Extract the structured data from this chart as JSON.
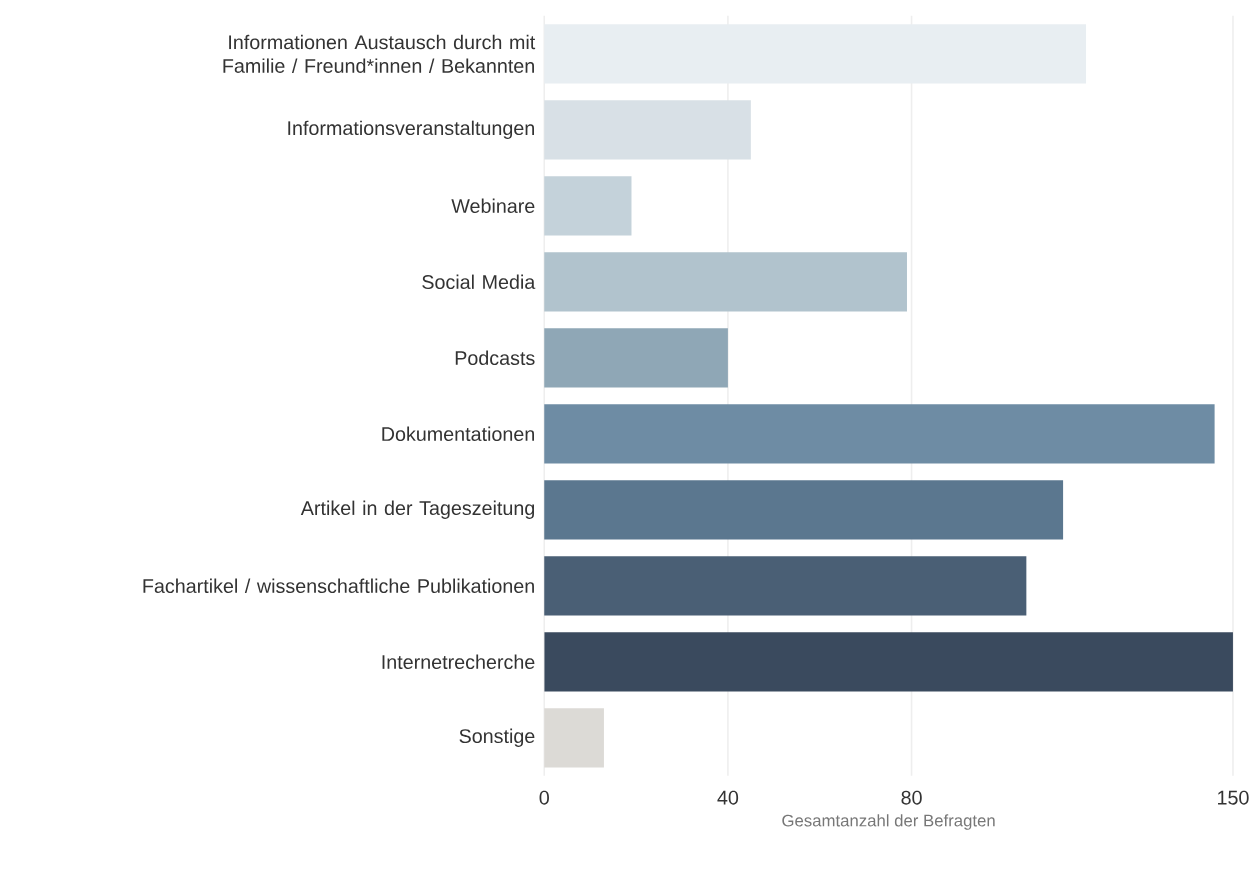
{
  "chart_data": {
    "type": "bar",
    "orientation": "horizontal",
    "categories": [
      "Informationen Austausch durch mit Familie / Freund*innen / Bekannten",
      "Informationsveranstaltungen",
      "Webinare",
      "Social Media",
      "Podcasts",
      "Dokumentationen",
      "Artikel in der Tageszeitung",
      "Fachartikel / wissenschaftliche Publikationen",
      "Internetrecherche",
      "Sonstige"
    ],
    "values": [
      118,
      45,
      19,
      79,
      40,
      146,
      113,
      105,
      150,
      13
    ],
    "colors": [
      "#e8eef2",
      "#d8e0e6",
      "#c4d2da",
      "#b1c3cd",
      "#8fa7b6",
      "#6e8ca4",
      "#5b778f",
      "#4a5f75",
      "#3a4a5e",
      "#dcdad6"
    ],
    "xlabel": "Gesamtanzahl der Befragten",
    "xlim": [
      0,
      150
    ],
    "xticks": [
      0,
      40,
      80,
      150
    ],
    "grid": "x"
  }
}
